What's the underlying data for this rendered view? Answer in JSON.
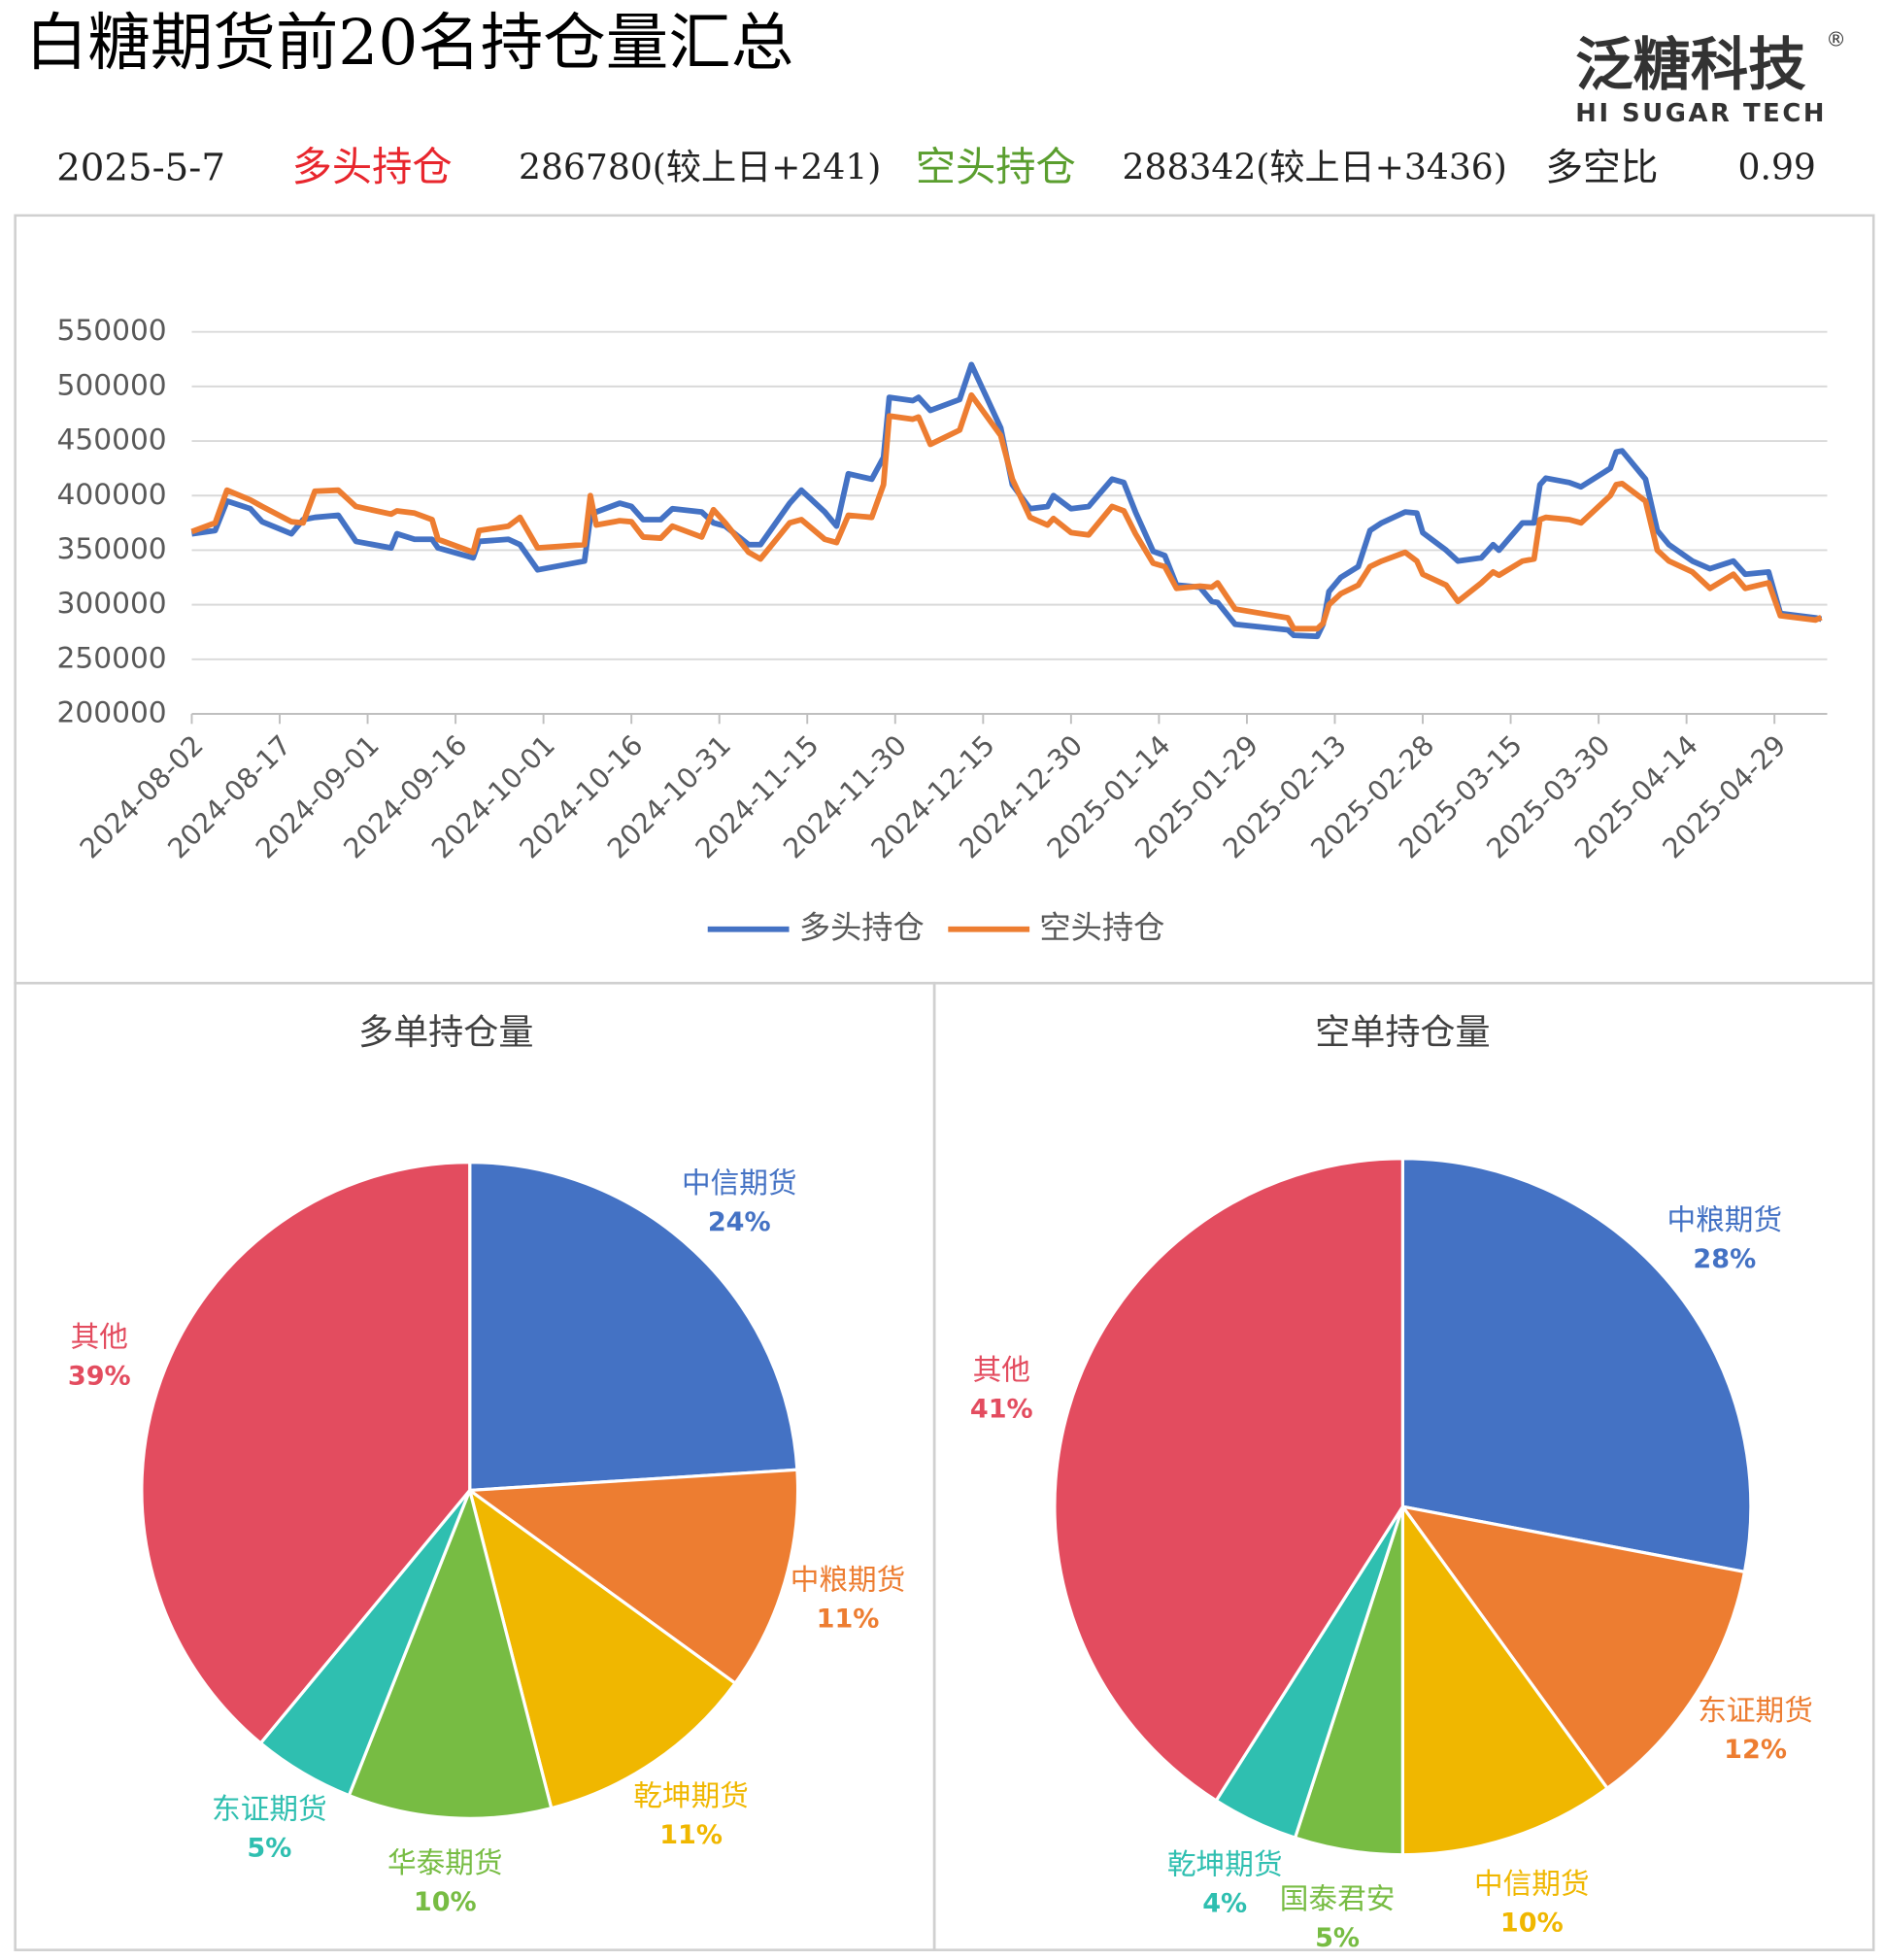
{
  "header": {
    "title": "白糖期货前20名持仓量汇总",
    "logo": "泛糖科技",
    "logo_mark": "®",
    "logo_sub": "HI SUGAR TECH",
    "date": "2025-5-7",
    "long_label": "多头持仓",
    "long_value": "286780(较上日+241)",
    "short_label": "空头持仓",
    "short_value": "288342(较上日+3436)",
    "ratio_label": "多空比",
    "ratio_value": "0.99"
  },
  "chart_data": [
    {
      "type": "line",
      "x": [
        "2024-08-02",
        "2024-08-06",
        "2024-08-08",
        "2024-08-12",
        "2024-08-14",
        "2024-08-19",
        "2024-08-21",
        "2024-08-23",
        "2024-08-27",
        "2024-08-30",
        "2024-09-05",
        "2024-09-06",
        "2024-09-09",
        "2024-09-12",
        "2024-09-13",
        "2024-09-19",
        "2024-09-20",
        "2024-09-25",
        "2024-09-27",
        "2024-09-30",
        "2024-10-08",
        "2024-10-09",
        "2024-10-10",
        "2024-10-14",
        "2024-10-16",
        "2024-10-18",
        "2024-10-21",
        "2024-10-23",
        "2024-10-28",
        "2024-10-30",
        "2024-11-01",
        "2024-11-05",
        "2024-11-07",
        "2024-11-12",
        "2024-11-14",
        "2024-11-18",
        "2024-11-20",
        "2024-11-22",
        "2024-11-26",
        "2024-11-28",
        "2024-11-29",
        "2024-12-03",
        "2024-12-04",
        "2024-12-06",
        "2024-12-11",
        "2024-12-13",
        "2024-12-18",
        "2024-12-20",
        "2024-12-23",
        "2024-12-26",
        "2024-12-27",
        "2024-12-30",
        "2025-01-02",
        "2025-01-06",
        "2025-01-08",
        "2025-01-10",
        "2025-01-13",
        "2025-01-15",
        "2025-01-17",
        "2025-01-21",
        "2025-01-23",
        "2025-01-24",
        "2025-01-27",
        "2025-02-05",
        "2025-02-06",
        "2025-02-10",
        "2025-02-11",
        "2025-02-12",
        "2025-02-14",
        "2025-02-17",
        "2025-02-19",
        "2025-02-21",
        "2025-02-25",
        "2025-02-27",
        "2025-02-28",
        "2025-03-04",
        "2025-03-06",
        "2025-03-10",
        "2025-03-12",
        "2025-03-13",
        "2025-03-17",
        "2025-03-19",
        "2025-03-20",
        "2025-03-21",
        "2025-03-25",
        "2025-03-27",
        "2025-04-01",
        "2025-04-02",
        "2025-04-03",
        "2025-04-07",
        "2025-04-09",
        "2025-04-11",
        "2025-04-15",
        "2025-04-18",
        "2025-04-22",
        "2025-04-24",
        "2025-04-28",
        "2025-04-30",
        "2025-05-06",
        "2025-05-07"
      ],
      "series": [
        {
          "name": "多头持仓",
          "color": "#4472c4",
          "values": [
            365000,
            368000,
            395000,
            388000,
            376000,
            365000,
            378000,
            380000,
            382000,
            358000,
            352000,
            365000,
            360000,
            360000,
            352000,
            343000,
            358000,
            360000,
            355000,
            332000,
            340000,
            380000,
            385000,
            393000,
            390000,
            378000,
            378000,
            388000,
            385000,
            375000,
            372000,
            355000,
            355000,
            393000,
            405000,
            385000,
            372000,
            420000,
            415000,
            435000,
            490000,
            487000,
            490000,
            478000,
            488000,
            520000,
            462000,
            410000,
            388000,
            390000,
            400000,
            388000,
            390000,
            415000,
            412000,
            385000,
            349000,
            345000,
            318000,
            316000,
            303000,
            302000,
            282000,
            277000,
            272000,
            271000,
            282000,
            312000,
            325000,
            335000,
            368000,
            375000,
            385000,
            384000,
            366000,
            350000,
            340000,
            343000,
            355000,
            350000,
            375000,
            375000,
            410000,
            416000,
            412000,
            408000,
            425000,
            440000,
            441000,
            415000,
            368000,
            355000,
            340000,
            333000,
            340000,
            328000,
            330000,
            292000,
            288000,
            286780
          ]
        },
        {
          "name": "空头持仓",
          "color": "#ed7d31",
          "values": [
            367000,
            375000,
            405000,
            396000,
            390000,
            376000,
            375000,
            404000,
            405000,
            390000,
            383000,
            386000,
            384000,
            378000,
            360000,
            348000,
            368000,
            372000,
            380000,
            352000,
            355000,
            400000,
            373000,
            377000,
            376000,
            362000,
            361000,
            372000,
            362000,
            387000,
            375000,
            348000,
            342000,
            375000,
            378000,
            360000,
            357000,
            382000,
            380000,
            410000,
            473000,
            470000,
            472000,
            447000,
            460000,
            492000,
            455000,
            415000,
            380000,
            373000,
            379000,
            366000,
            364000,
            390000,
            386000,
            365000,
            338000,
            335000,
            315000,
            317000,
            316000,
            320000,
            296000,
            288000,
            278000,
            278000,
            283000,
            300000,
            310000,
            318000,
            335000,
            340000,
            348000,
            340000,
            328000,
            318000,
            303000,
            320000,
            330000,
            327000,
            340000,
            342000,
            378000,
            380000,
            378000,
            375000,
            400000,
            410000,
            411000,
            395000,
            350000,
            340000,
            330000,
            315000,
            328000,
            315000,
            320000,
            290000,
            286000,
            288342
          ]
        }
      ],
      "xlim": [
        "2024-08-02",
        "2025-05-08"
      ],
      "xticks": [
        "2024-08-02",
        "2024-08-17",
        "2024-09-01",
        "2024-09-16",
        "2024-10-01",
        "2024-10-16",
        "2024-10-31",
        "2024-11-15",
        "2024-11-30",
        "2024-12-15",
        "2024-12-30",
        "2025-01-14",
        "2025-01-29",
        "2025-02-13",
        "2025-02-28",
        "2025-03-15",
        "2025-03-30",
        "2025-04-14",
        "2025-04-29"
      ],
      "ylim": [
        200000,
        550000
      ],
      "yticks": [
        200000,
        250000,
        300000,
        350000,
        400000,
        450000,
        500000,
        550000
      ],
      "grid": true,
      "legend": "bottom"
    },
    {
      "type": "pie",
      "title": "多单持仓量",
      "categories": [
        "中信期货",
        "中粮期货",
        "乾坤期货",
        "华泰期货",
        "东证期货",
        "其他"
      ],
      "values": [
        24,
        11,
        11,
        10,
        5,
        39
      ],
      "value_labels": [
        "24%",
        "11%",
        "11%",
        "10%",
        "5%",
        "39%"
      ],
      "colors": [
        "#4472c4",
        "#ed7d31",
        "#f0b700",
        "#77bc43",
        "#2fbfb0",
        "#e34c5f"
      ]
    },
    {
      "type": "pie",
      "title": "空单持仓量",
      "categories": [
        "中粮期货",
        "东证期货",
        "中信期货",
        "国泰君安",
        "乾坤期货",
        "其他"
      ],
      "values": [
        28,
        12,
        10,
        5,
        4,
        41
      ],
      "value_labels": [
        "28%",
        "12%",
        "10%",
        "5%",
        "4%",
        "41%"
      ],
      "colors": [
        "#4472c4",
        "#ed7d31",
        "#f0b700",
        "#77bc43",
        "#2fbfb0",
        "#e34c5f"
      ]
    }
  ]
}
